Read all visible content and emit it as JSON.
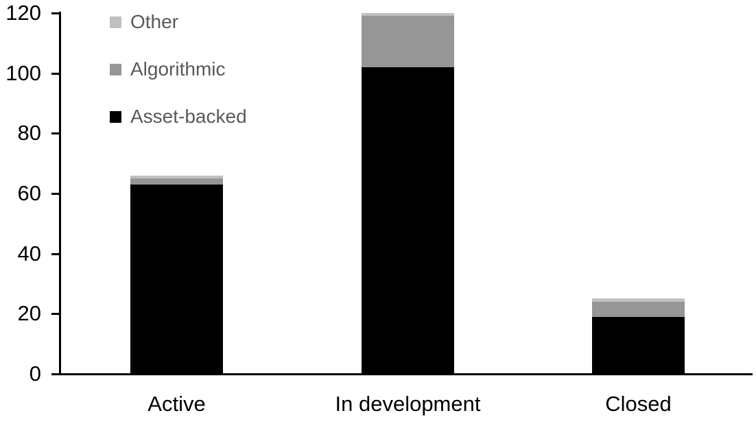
{
  "chart_data": {
    "type": "bar",
    "stacked": true,
    "title": "",
    "xlabel": "",
    "ylabel": "",
    "categories": [
      "Active",
      "In development",
      "Closed"
    ],
    "series": [
      {
        "name": "Asset-backed",
        "color": "#000000",
        "values": [
          63,
          102,
          19
        ]
      },
      {
        "name": "Algorithmic",
        "color": "#969696",
        "values": [
          2,
          17,
          5
        ]
      },
      {
        "name": "Other",
        "color": "#c0c0c0",
        "values": [
          1,
          1,
          1
        ]
      }
    ],
    "totals": [
      66,
      120,
      25
    ],
    "ylim": [
      0,
      120
    ],
    "y_ticks": [
      0,
      20,
      40,
      60,
      80,
      100,
      120
    ],
    "grid": false,
    "legend_position": "top-left",
    "legend_order": [
      "Other",
      "Algorithmic",
      "Asset-backed"
    ]
  },
  "colors": {
    "background": "#ffffff",
    "axis": "#000000",
    "tick_label_text": "#000000",
    "category_label_text": "#000000",
    "legend_text": "#595959"
  }
}
